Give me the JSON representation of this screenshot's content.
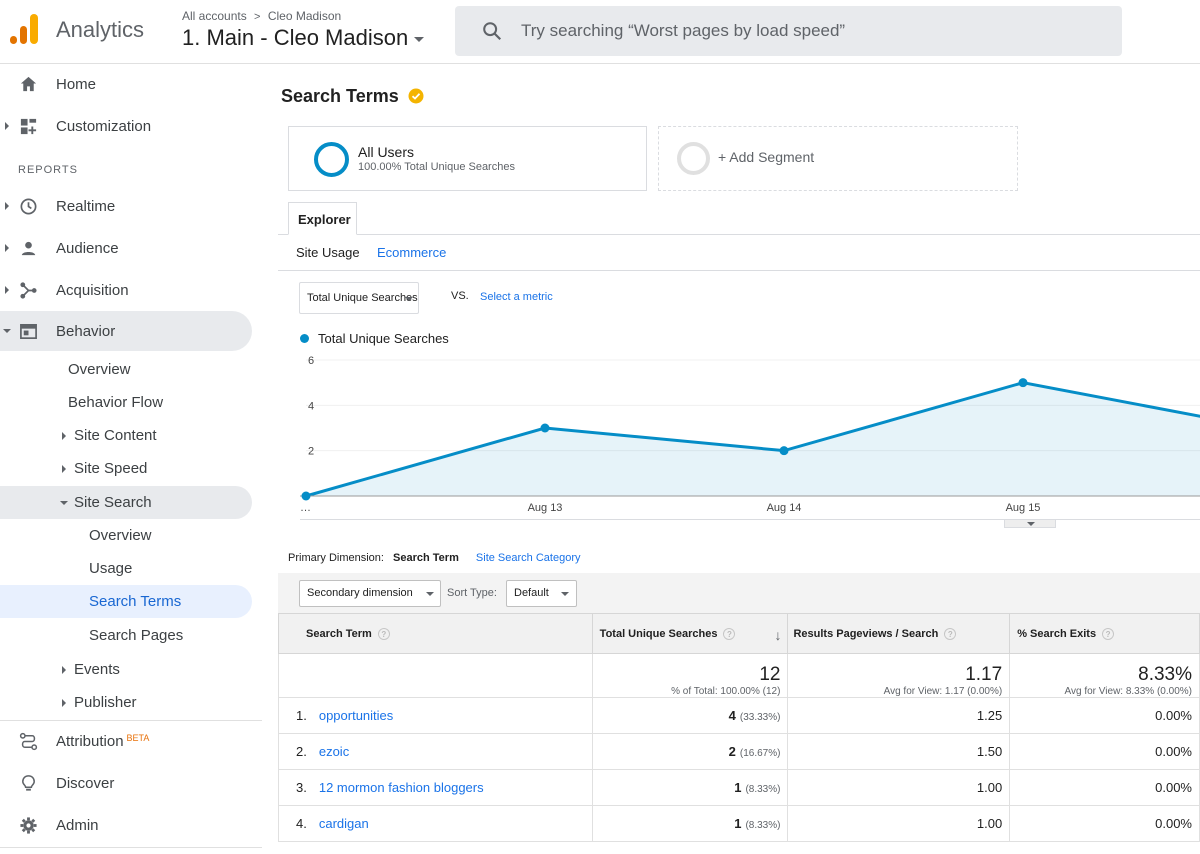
{
  "header": {
    "app_name": "Analytics",
    "breadcrumb_account": "All accounts",
    "breadcrumb_property": "Cleo Madison",
    "view_name": "1. Main - Cleo Madison",
    "search_placeholder": "Try searching “Worst pages by load speed”"
  },
  "sidebar": {
    "home": "Home",
    "customization": "Customization",
    "reports_heading": "REPORTS",
    "realtime": "Realtime",
    "audience": "Audience",
    "acquisition": "Acquisition",
    "behavior": "Behavior",
    "behavior_items": {
      "overview": "Overview",
      "behavior_flow": "Behavior Flow",
      "site_content": "Site Content",
      "site_speed": "Site Speed",
      "site_search": "Site Search",
      "ss_overview": "Overview",
      "ss_usage": "Usage",
      "ss_search_terms": "Search Terms",
      "ss_search_pages": "Search Pages",
      "events": "Events",
      "publisher": "Publisher"
    },
    "attribution": "Attribution",
    "attribution_badge": "BETA",
    "discover": "Discover",
    "admin": "Admin"
  },
  "report": {
    "title": "Search Terms",
    "segment_all_users": "All Users",
    "segment_all_users_sub": "100.00% Total Unique Searches",
    "add_segment": "+ Add Segment",
    "explorer_tab": "Explorer",
    "subtab_site_usage": "Site Usage",
    "subtab_ecommerce": "Ecommerce",
    "metric_select": "Total Unique Searches",
    "vs": "VS.",
    "select_metric": "Select a metric",
    "legend": "Total Unique Searches",
    "primary_dimension_label": "Primary Dimension:",
    "primary_dimension_active": "Search Term",
    "primary_dimension_other": "Site Search Category",
    "secondary_dimension": "Secondary dimension",
    "sort_type_label": "Sort Type:",
    "sort_type_value": "Default"
  },
  "chart_data": {
    "type": "area",
    "x": [
      "…",
      "Aug 13",
      "Aug 14",
      "Aug 15",
      ""
    ],
    "series": [
      {
        "name": "Total Unique Searches",
        "values": [
          0,
          3,
          2,
          5,
          3
        ]
      }
    ],
    "y_ticks": [
      "2",
      "4",
      "6"
    ],
    "ylim": [
      0,
      6
    ],
    "color": "#058dc7"
  },
  "table": {
    "columns": [
      "Search Term",
      "Total Unique Searches",
      "Results Pageviews / Search",
      "% Search Exits"
    ],
    "totals": {
      "unique": "12",
      "unique_sub": "% of Total: 100.00% (12)",
      "rps": "1.17",
      "rps_sub": "Avg for View: 1.17 (0.00%)",
      "exits": "8.33%",
      "exits_sub": "Avg for View: 8.33% (0.00%)"
    },
    "rows": [
      {
        "rank": "1.",
        "term": "opportunities",
        "unique": "4",
        "pct": "(33.33%)",
        "rps": "1.25",
        "exits": "0.00%"
      },
      {
        "rank": "2.",
        "term": "ezoic",
        "unique": "2",
        "pct": "(16.67%)",
        "rps": "1.50",
        "exits": "0.00%"
      },
      {
        "rank": "3.",
        "term": "12 mormon fashion bloggers",
        "unique": "1",
        "pct": "(8.33%)",
        "rps": "1.00",
        "exits": "0.00%"
      },
      {
        "rank": "4.",
        "term": "cardigan",
        "unique": "1",
        "pct": "(8.33%)",
        "rps": "1.00",
        "exits": "0.00%"
      }
    ]
  }
}
